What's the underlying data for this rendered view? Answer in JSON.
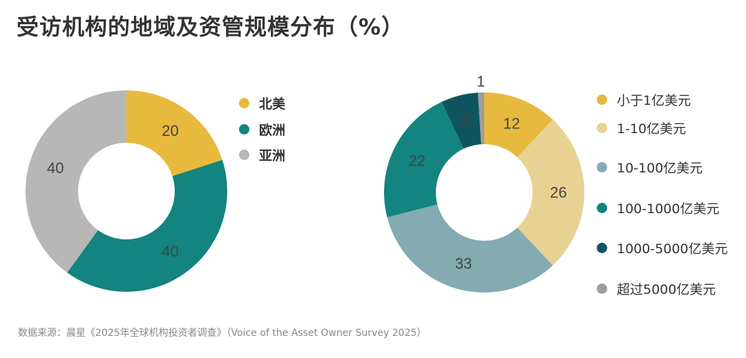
{
  "title": "受访机构的地域及资管规模分布（%）",
  "source": "数据来源：晨星《2025年全球机构投资者调查》（Voice of the Asset Owner Survey 2025）",
  "chart_data": [
    {
      "type": "pie",
      "name": "region",
      "categories": [
        "北美",
        "欧洲",
        "亚洲"
      ],
      "values": [
        20,
        40,
        40
      ],
      "colors": [
        "#E7BA3E",
        "#13847F",
        "#B7B7B7"
      ],
      "label_colors": [
        "#444444",
        "#CFE6E4",
        "#555555"
      ]
    },
    {
      "type": "pie",
      "name": "aum",
      "categories": [
        "小于1亿美元",
        "1-10亿美元",
        "10-100亿美元",
        "100-1000亿美元",
        "1000-5000亿美元",
        "超过5000亿美元"
      ],
      "values": [
        12,
        26,
        33,
        22,
        6,
        1
      ],
      "colors": [
        "#E7BA3E",
        "#E8D293",
        "#84AAB2",
        "#13847F",
        "#10555E",
        "#9E9E9E"
      ],
      "label_colors": [
        "#444444",
        "#444444",
        "#444444",
        "#F2F2F2",
        "#F2F2F2",
        "#444444"
      ]
    }
  ]
}
